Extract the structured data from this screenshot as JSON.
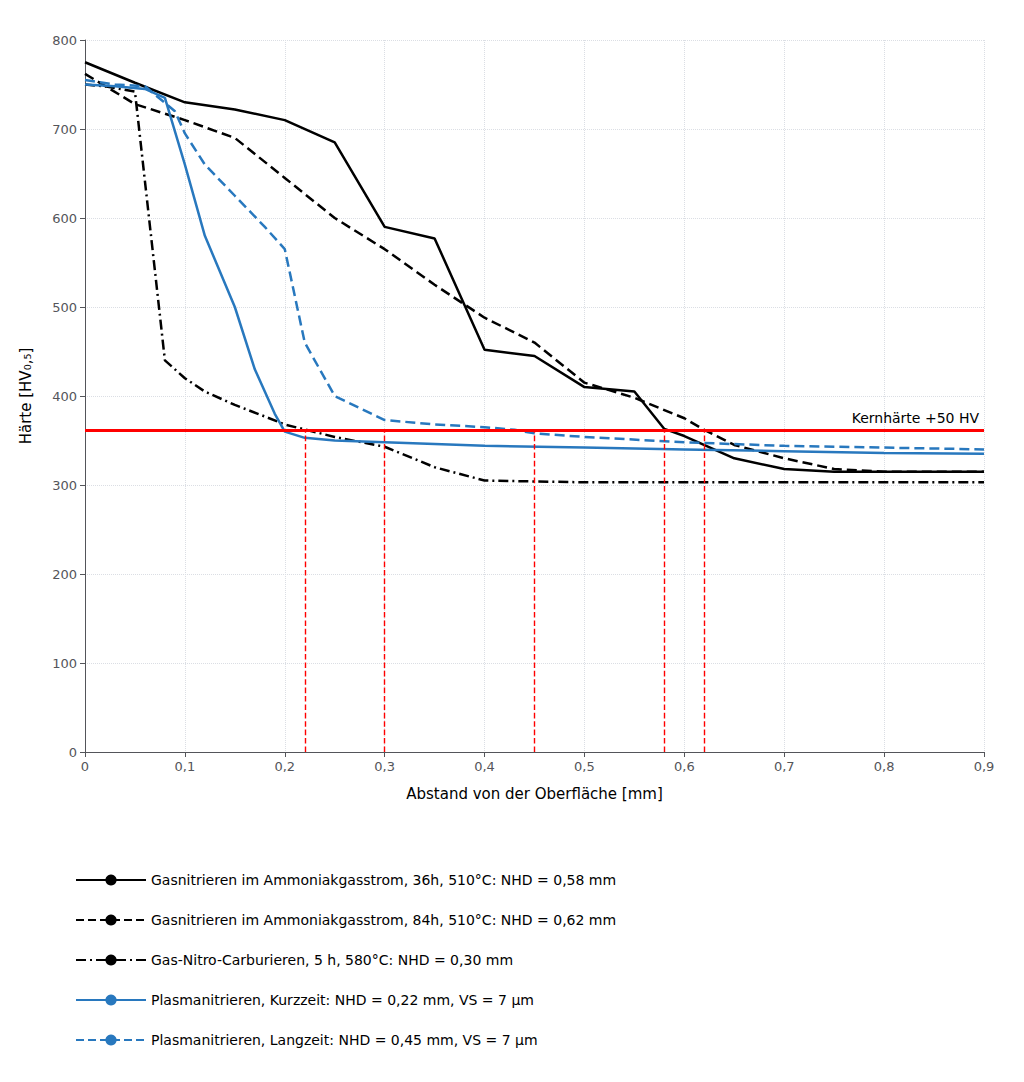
{
  "chart_data": {
    "type": "line",
    "xlabel": "Abstand von der Oberfläche [mm]",
    "ylabel": "Härte [HV₀,₅]",
    "xlim": [
      0,
      0.9
    ],
    "ylim": [
      0,
      800
    ],
    "xticks": [
      0,
      {
        "value": 0.1,
        "label": "0,1"
      },
      {
        "value": 0.2,
        "label": "0,2"
      },
      {
        "value": 0.3,
        "label": "0,3"
      },
      {
        "value": 0.4,
        "label": "0,4"
      },
      {
        "value": 0.5,
        "label": "0,5"
      },
      {
        "value": 0.6,
        "label": "0,6"
      },
      {
        "value": 0.7,
        "label": "0,7"
      },
      {
        "value": 0.8,
        "label": "0,8"
      },
      {
        "value": 0.9,
        "label": "0,9"
      }
    ],
    "yticks": [
      0,
      100,
      200,
      300,
      400,
      500,
      600,
      700,
      800
    ],
    "grid": true,
    "legend": "bottom",
    "hline": {
      "y": 362,
      "label": "Kernhärte +50 HV",
      "color": "red"
    },
    "vlines": {
      "x": [
        0.22,
        0.3,
        0.45,
        0.58,
        0.62
      ],
      "color": "red",
      "line_style": "dashed"
    },
    "series": [
      {
        "name": "Gasnitrieren im Ammoniakgasstrom, 36h, 510°C: NHD = 0,58 mm",
        "color": "#000000",
        "line_style": "solid",
        "x": [
          0,
          0.05,
          0.1,
          0.15,
          0.2,
          0.25,
          0.3,
          0.35,
          0.4,
          0.45,
          0.5,
          0.55,
          0.58,
          0.6,
          0.65,
          0.7,
          0.75,
          0.8,
          0.85,
          0.9
        ],
        "values": [
          775,
          752,
          730,
          722,
          710,
          685,
          590,
          577,
          452,
          445,
          410,
          405,
          363,
          355,
          330,
          318,
          315,
          315,
          315,
          315
        ]
      },
      {
        "name": "Gasnitrieren im Ammoniakgasstrom, 84h, 510°C: NHD = 0,62 mm",
        "color": "#000000",
        "line_style": "dashed",
        "x": [
          0,
          0.05,
          0.1,
          0.15,
          0.2,
          0.25,
          0.3,
          0.35,
          0.4,
          0.45,
          0.5,
          0.55,
          0.6,
          0.62,
          0.65,
          0.7,
          0.75,
          0.8,
          0.9
        ],
        "values": [
          762,
          728,
          710,
          690,
          645,
          600,
          565,
          525,
          488,
          460,
          415,
          398,
          375,
          362,
          345,
          330,
          318,
          315,
          315
        ]
      },
      {
        "name": "Gas-Nitro-Carburieren, 5 h, 580°C: NHD = 0,30 mm",
        "color": "#000000",
        "line_style": "dashdot",
        "x": [
          0,
          0.02,
          0.05,
          0.08,
          0.1,
          0.12,
          0.15,
          0.18,
          0.2,
          0.25,
          0.3,
          0.35,
          0.4,
          0.5,
          0.6,
          0.7,
          0.8,
          0.9
        ],
        "values": [
          750,
          748,
          742,
          440,
          420,
          405,
          390,
          377,
          368,
          354,
          343,
          320,
          305,
          303,
          303,
          303,
          303,
          303
        ]
      },
      {
        "name": "Plasmanitrieren, Kurzzeit: NHD = 0,22 mm, VS = 7 µm",
        "color": "#2878BE",
        "line_style": "solid",
        "x": [
          0,
          0.03,
          0.06,
          0.08,
          0.1,
          0.12,
          0.15,
          0.17,
          0.19,
          0.2,
          0.22,
          0.25,
          0.3,
          0.35,
          0.4,
          0.5,
          0.6,
          0.7,
          0.8,
          0.9
        ],
        "values": [
          750,
          748,
          745,
          735,
          660,
          580,
          500,
          430,
          380,
          360,
          353,
          350,
          348,
          346,
          344,
          342,
          340,
          338,
          336,
          335
        ]
      },
      {
        "name": "Plasmanitrieren, Langzeit: NHD = 0,45 mm, VS = 7 µm",
        "color": "#2878BE",
        "line_style": "dashed",
        "x": [
          0,
          0.03,
          0.06,
          0.09,
          0.1,
          0.12,
          0.15,
          0.18,
          0.2,
          0.22,
          0.25,
          0.3,
          0.35,
          0.4,
          0.43,
          0.45,
          0.5,
          0.6,
          0.7,
          0.9
        ],
        "values": [
          755,
          750,
          748,
          720,
          695,
          660,
          625,
          590,
          565,
          460,
          400,
          373,
          368,
          365,
          362,
          358,
          354,
          348,
          344,
          340
        ]
      }
    ]
  }
}
